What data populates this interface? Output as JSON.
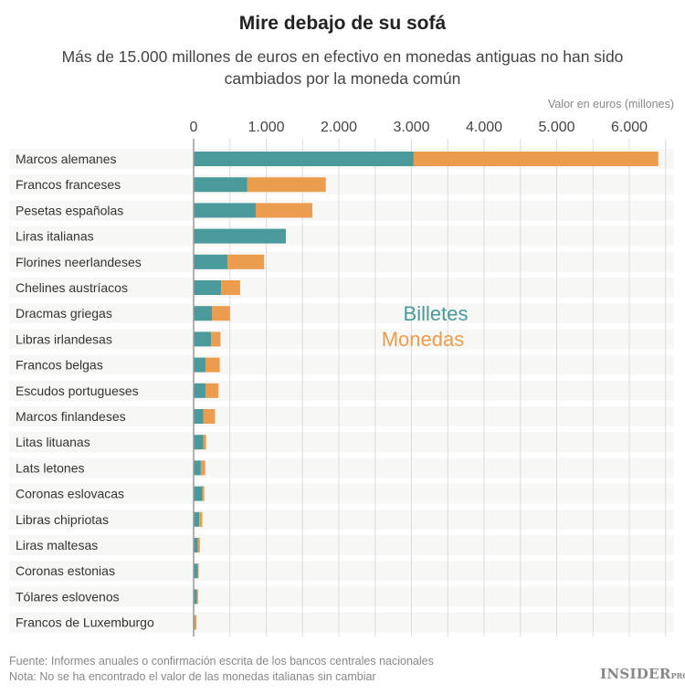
{
  "title": "Mire debajo de su sofá",
  "subtitle": "Más de 15.000 millones de euros en efectivo en monedas antiguas no han sido cambiados por la moneda común",
  "footer": {
    "source": "Fuente: Informes anuales o confirmación escrita de los bancos centrales nacionales",
    "note": "Nota: No se ha encontrado el valor de las monedas italianas sin cambiar",
    "logo": "INSIDER",
    "logo_suffix": "PRO"
  },
  "chart_data": {
    "type": "bar",
    "orientation": "horizontal",
    "stacked": true,
    "xlabel": "Valor en euros (millones)",
    "xlim": [
      0,
      6500
    ],
    "ticks": [
      0,
      1000,
      2000,
      3000,
      4000,
      5000,
      6000
    ],
    "tick_labels": [
      "0",
      "1.000",
      "2.000",
      "3.000",
      "4.000",
      "5.000",
      "6.000"
    ],
    "grid": true,
    "legend_position": "center",
    "categories": [
      "Marcos alemanes",
      "Francos franceses",
      "Pesetas españolas",
      "Liras italianas",
      "Florines neerlandeses",
      "Chelines austríacos",
      "Dracmas griegas",
      "Libras irlandesas",
      "Francos belgas",
      "Escudos portugueses",
      "Marcos finlandeses",
      "Litas lituanas",
      "Lats letones",
      "Coronas eslovacas",
      "Libras chipriotas",
      "Liras maltesas",
      "Coronas estonias",
      "Tólares eslovenos",
      "Francos de Luxemburgo"
    ],
    "series": [
      {
        "name": "Billetes",
        "color": "#4a9a9b",
        "values": [
          3030,
          740,
          855,
          1270,
          465,
          380,
          255,
          240,
          163,
          163,
          133,
          133,
          99,
          120,
          77,
          56,
          60,
          44,
          13
        ]
      },
      {
        "name": "Monedas",
        "color": "#eb9c4f",
        "values": [
          3370,
          1080,
          780,
          0,
          505,
          260,
          245,
          130,
          197,
          180,
          162,
          39,
          60,
          26,
          43,
          30,
          9,
          16,
          26
        ]
      }
    ]
  }
}
